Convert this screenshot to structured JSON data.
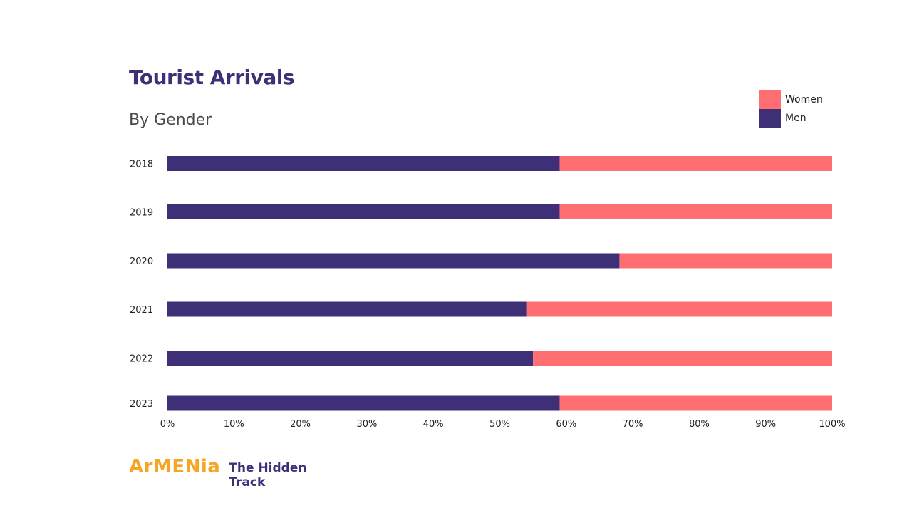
{
  "colors": {
    "men": "#3f2f76",
    "women": "#ff6f71",
    "title": "#3f2f76",
    "brand_orange": "#f5a623"
  },
  "header": {
    "title": "Tourist Arrivals",
    "subtitle": "By Gender"
  },
  "legend": {
    "items": [
      {
        "label": "Women",
        "color": "#ff6f71"
      },
      {
        "label": "Men",
        "color": "#3f2f76"
      }
    ]
  },
  "chart_data": {
    "type": "bar",
    "orientation": "horizontal",
    "stacked": true,
    "normalized": true,
    "title": "Tourist Arrivals",
    "subtitle": "By Gender",
    "categories": [
      "2018",
      "2019",
      "2020",
      "2021",
      "2022",
      "2023"
    ],
    "series": [
      {
        "name": "Men",
        "color": "#3f2f76",
        "values": [
          59,
          59,
          68,
          54,
          55,
          59
        ]
      },
      {
        "name": "Women",
        "color": "#ff6f71",
        "values": [
          41,
          41,
          32,
          46,
          45,
          41
        ]
      }
    ],
    "xlim": [
      0,
      100
    ],
    "xticks": [
      "0%",
      "10%",
      "20%",
      "30%",
      "40%",
      "50%",
      "60%",
      "70%",
      "80%",
      "90%",
      "100%"
    ],
    "grid": false,
    "legend_position": "top-right"
  },
  "footer": {
    "logo_text": "ArMENia",
    "logo_tagline": "The Hidden Track"
  }
}
